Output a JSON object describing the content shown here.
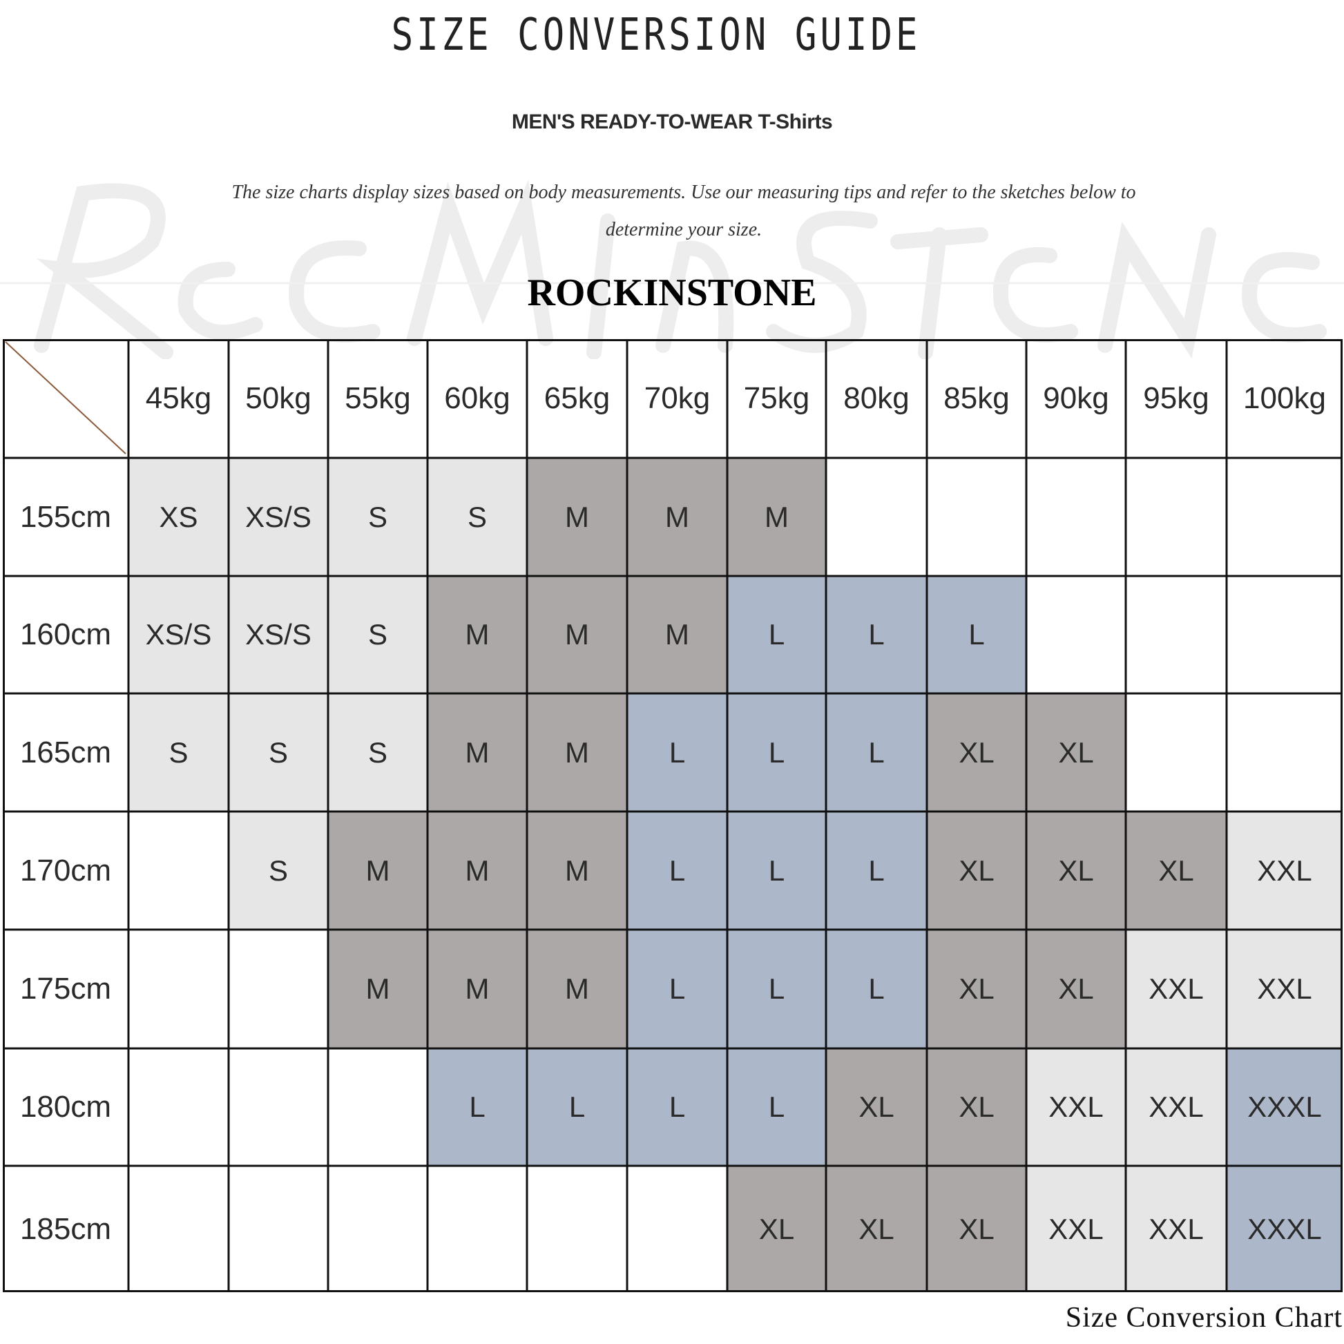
{
  "title": "SIZE CONVERSION GUIDE",
  "subtitle": "MEN'S READY-TO-WEAR T-Shirts",
  "description": "The size charts display sizes based on body measurements. Use our measuring tips and refer to the sketches below to determine your size.",
  "watermark": "Rockinstone",
  "brand": "ROCKINSTONE",
  "footer": "Size Conversion Chart",
  "colors": {
    "light": "#e6e6e6",
    "dark": "#aca8a7",
    "blue": "#acb8ca",
    "grid": "#111111",
    "diagonal": "#8a5a3a"
  },
  "size_colors": {
    "XS": "light",
    "XS/S": "light",
    "S": "light",
    "M": "dark",
    "L": "blue",
    "XL": "dark",
    "XXL": "light",
    "XXXL": "blue"
  },
  "table": {
    "weights": [
      "45kg",
      "50kg",
      "55kg",
      "60kg",
      "65kg",
      "70kg",
      "75kg",
      "80kg",
      "85kg",
      "90kg",
      "95kg",
      "100kg"
    ],
    "rows": [
      {
        "height": "155cm",
        "sizes": [
          "XS",
          "XS/S",
          "S",
          "S",
          "M",
          "M",
          "M",
          "",
          "",
          "",
          "",
          ""
        ]
      },
      {
        "height": "160cm",
        "sizes": [
          "XS/S",
          "XS/S",
          "S",
          "M",
          "M",
          "M",
          "L",
          "L",
          "L",
          "",
          "",
          ""
        ]
      },
      {
        "height": "165cm",
        "sizes": [
          "S",
          "S",
          "S",
          "M",
          "M",
          "L",
          "L",
          "L",
          "XL",
          "XL",
          "",
          ""
        ]
      },
      {
        "height": "170cm",
        "sizes": [
          "",
          "S",
          "M",
          "M",
          "M",
          "L",
          "L",
          "L",
          "XL",
          "XL",
          "XL",
          "XXL"
        ]
      },
      {
        "height": "175cm",
        "sizes": [
          "",
          "",
          "M",
          "M",
          "M",
          "L",
          "L",
          "L",
          "XL",
          "XL",
          "XXL",
          "XXL"
        ]
      },
      {
        "height": "180cm",
        "sizes": [
          "",
          "",
          "",
          "L",
          "L",
          "L",
          "L",
          "XL",
          "XL",
          "XXL",
          "XXL",
          "XXXL"
        ]
      },
      {
        "height": "185cm",
        "sizes": [
          "",
          "",
          "",
          "",
          "",
          "",
          "XL",
          "XL",
          "XL",
          "XXL",
          "XXL",
          "XXXL"
        ]
      }
    ]
  }
}
